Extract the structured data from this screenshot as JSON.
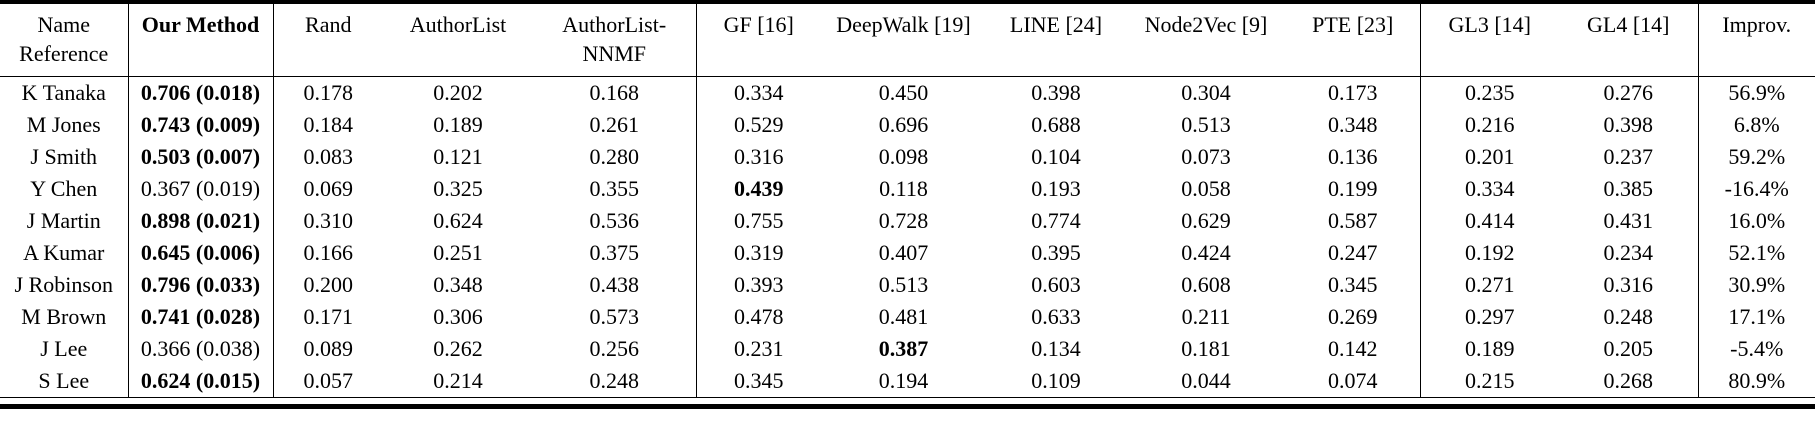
{
  "page": {
    "background": "#ffffff",
    "text_color": "#000000",
    "rule_color": "#000000"
  },
  "table": {
    "name_header_lines": [
      "Name",
      "Reference"
    ],
    "columns": [
      {
        "id": "our-method",
        "label": "Our Method",
        "bold": true,
        "group_end": true
      },
      {
        "id": "rand",
        "label": "Rand",
        "bold": false,
        "group_end": false
      },
      {
        "id": "authorlist",
        "label": "AuthorList",
        "bold": false,
        "group_end": false
      },
      {
        "id": "authorlist-nnmf",
        "label": "AuthorList-NNMF",
        "bold": false,
        "group_end": true
      },
      {
        "id": "gf",
        "label": "GF [16]",
        "bold": false,
        "group_end": false
      },
      {
        "id": "deepwalk",
        "label": "DeepWalk [19]",
        "bold": false,
        "group_end": false
      },
      {
        "id": "line",
        "label": "LINE [24]",
        "bold": false,
        "group_end": false
      },
      {
        "id": "node2vec",
        "label": "Node2Vec [9]",
        "bold": false,
        "group_end": false
      },
      {
        "id": "pte",
        "label": "PTE [23]",
        "bold": false,
        "group_end": true
      },
      {
        "id": "gl3",
        "label": "GL3 [14]",
        "bold": false,
        "group_end": false
      },
      {
        "id": "gl4",
        "label": "GL4 [14]",
        "bold": false,
        "group_end": true
      },
      {
        "id": "improv",
        "label": "Improv.",
        "bold": false,
        "group_end": false
      }
    ],
    "rows": [
      {
        "name": "K Tanaka",
        "values": [
          "0.706 (0.018)",
          "0.178",
          "0.202",
          "0.168",
          "0.334",
          "0.450",
          "0.398",
          "0.304",
          "0.173",
          "0.235",
          "0.276",
          "56.9%"
        ],
        "bold_indices": [
          0
        ]
      },
      {
        "name": "M Jones",
        "values": [
          "0.743 (0.009)",
          "0.184",
          "0.189",
          "0.261",
          "0.529",
          "0.696",
          "0.688",
          "0.513",
          "0.348",
          "0.216",
          "0.398",
          "6.8%"
        ],
        "bold_indices": [
          0
        ]
      },
      {
        "name": "J Smith",
        "values": [
          "0.503 (0.007)",
          "0.083",
          "0.121",
          "0.280",
          "0.316",
          "0.098",
          "0.104",
          "0.073",
          "0.136",
          "0.201",
          "0.237",
          "59.2%"
        ],
        "bold_indices": [
          0
        ]
      },
      {
        "name": "Y Chen",
        "values": [
          "0.367 (0.019)",
          "0.069",
          "0.325",
          "0.355",
          "0.439",
          "0.118",
          "0.193",
          "0.058",
          "0.199",
          "0.334",
          "0.385",
          "-16.4%"
        ],
        "bold_indices": [
          4
        ]
      },
      {
        "name": "J Martin",
        "values": [
          "0.898 (0.021)",
          "0.310",
          "0.624",
          "0.536",
          "0.755",
          "0.728",
          "0.774",
          "0.629",
          "0.587",
          "0.414",
          "0.431",
          "16.0%"
        ],
        "bold_indices": [
          0
        ]
      },
      {
        "name": "A Kumar",
        "values": [
          "0.645 (0.006)",
          "0.166",
          "0.251",
          "0.375",
          "0.319",
          "0.407",
          "0.395",
          "0.424",
          "0.247",
          "0.192",
          "0.234",
          "52.1%"
        ],
        "bold_indices": [
          0
        ]
      },
      {
        "name": "J Robinson",
        "values": [
          "0.796 (0.033)",
          "0.200",
          "0.348",
          "0.438",
          "0.393",
          "0.513",
          "0.603",
          "0.608",
          "0.345",
          "0.271",
          "0.316",
          "30.9%"
        ],
        "bold_indices": [
          0
        ]
      },
      {
        "name": "M Brown",
        "values": [
          "0.741 (0.028)",
          "0.171",
          "0.306",
          "0.573",
          "0.478",
          "0.481",
          "0.633",
          "0.211",
          "0.269",
          "0.297",
          "0.248",
          "17.1%"
        ],
        "bold_indices": [
          0
        ]
      },
      {
        "name": "J Lee",
        "values": [
          "0.366 (0.038)",
          "0.089",
          "0.262",
          "0.256",
          "0.231",
          "0.387",
          "0.134",
          "0.181",
          "0.142",
          "0.189",
          "0.205",
          "-5.4%"
        ],
        "bold_indices": [
          5
        ]
      },
      {
        "name": "S Lee",
        "values": [
          "0.624 (0.015)",
          "0.057",
          "0.214",
          "0.248",
          "0.345",
          "0.194",
          "0.109",
          "0.044",
          "0.074",
          "0.215",
          "0.268",
          "80.9%"
        ],
        "bold_indices": [
          0
        ]
      }
    ]
  }
}
